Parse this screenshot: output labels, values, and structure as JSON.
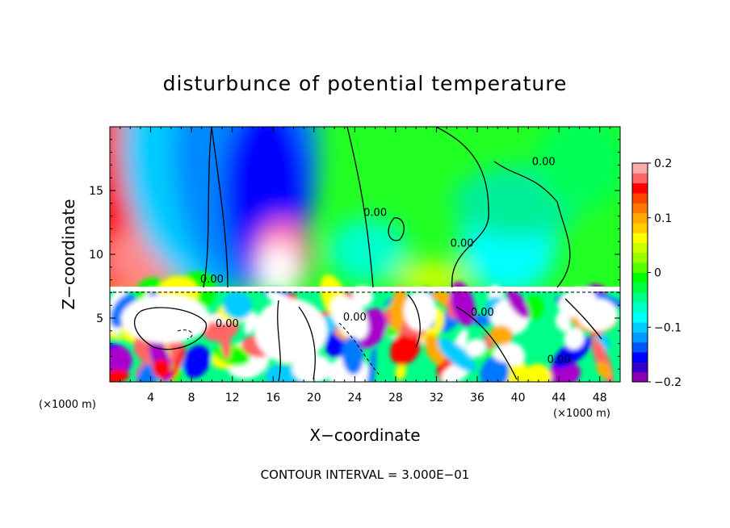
{
  "chart_data": {
    "type": "heatmap",
    "title": "disturbunce of potential temperature",
    "xlabel": "X−coordinate",
    "ylabel": "Z−coordinate",
    "x_unit": "(×1000 m)",
    "y_unit": "(×1000 m)",
    "xlim": [
      0,
      50
    ],
    "ylim": [
      0,
      20
    ],
    "x_ticks": [
      4,
      8,
      12,
      16,
      20,
      24,
      28,
      32,
      36,
      40,
      44,
      48
    ],
    "y_ticks": [
      5,
      10,
      15
    ],
    "colorbar": {
      "range": [
        -0.2,
        0.2
      ],
      "ticks": [
        0.2,
        0.1,
        0,
        -0.1,
        -0.2
      ],
      "tick_labels": [
        "0.2",
        "0.1",
        "0",
        "−0.1",
        "−0.2"
      ],
      "colors": [
        "#8a00b0",
        "#3300cc",
        "#0000ff",
        "#0055ff",
        "#0099ff",
        "#00ccff",
        "#00ffff",
        "#00ffcc",
        "#00ff88",
        "#00ff44",
        "#00ff00",
        "#55ff00",
        "#99ff00",
        "#ccff00",
        "#ffff00",
        "#ffcc00",
        "#ffaa00",
        "#ff7700",
        "#ff4400",
        "#ff0000",
        "#ff6666",
        "#ffaaaa"
      ]
    },
    "contour_labels": [
      {
        "text": "0.00",
        "x": 10,
        "z": 7.8
      },
      {
        "text": "0.00",
        "x": 26,
        "z": 13
      },
      {
        "text": "0.00",
        "x": 34.5,
        "z": 10.6
      },
      {
        "text": "0.00",
        "x": 42.5,
        "z": 17
      },
      {
        "text": "0.00",
        "x": 11.5,
        "z": 4.3
      },
      {
        "text": "0.00",
        "x": 24,
        "z": 4.8
      },
      {
        "text": "0.00",
        "x": 36.5,
        "z": 5.2
      },
      {
        "text": "0.00",
        "x": 44,
        "z": 1.5
      }
    ],
    "contour_interval_label": "CONTOUR INTERVAL = 3.000E−01",
    "grid": false
  }
}
